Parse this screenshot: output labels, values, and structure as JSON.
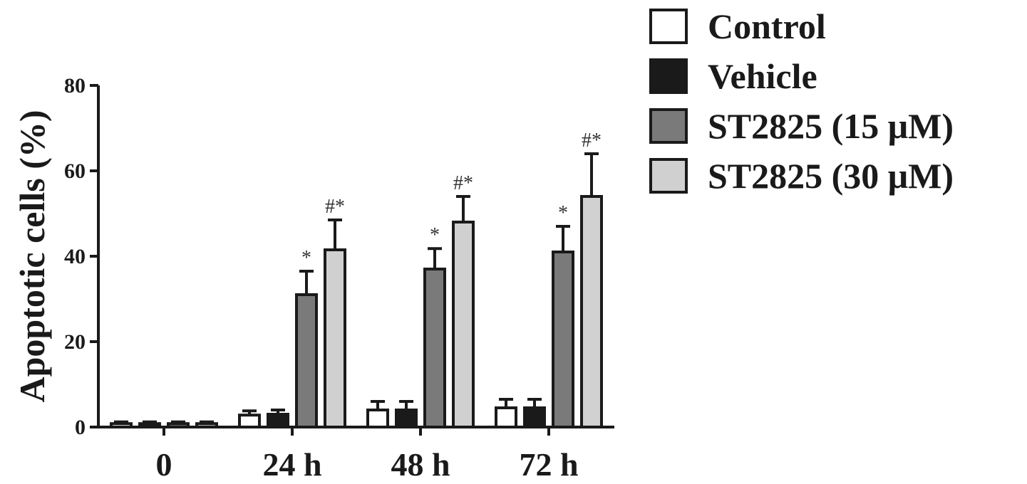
{
  "chart_data": {
    "type": "bar",
    "ylabel": "Apoptotic cells (%)",
    "xlabel": "",
    "ylim": [
      0,
      80
    ],
    "yticks": [
      0,
      20,
      40,
      60,
      80
    ],
    "categories": [
      "0",
      "24 h",
      "48 h",
      "72 h"
    ],
    "legend_position": "top-right",
    "series": [
      {
        "name": "Control",
        "color": "#ffffff",
        "values": [
          0.8,
          2.8,
          4.0,
          4.5
        ],
        "errors": [
          0.4,
          1.0,
          2.0,
          2.0
        ],
        "annotations": [
          "",
          "",
          "",
          ""
        ]
      },
      {
        "name": "Vehicle",
        "color": "#1a1a1a",
        "values": [
          0.8,
          3.0,
          4.0,
          4.5
        ],
        "errors": [
          0.4,
          1.0,
          2.0,
          2.0
        ],
        "annotations": [
          "",
          "",
          "",
          ""
        ]
      },
      {
        "name": "ST2825 (15 μM)",
        "color": "#7a7a7a",
        "values": [
          0.8,
          31.0,
          37.0,
          41.0
        ],
        "errors": [
          0.4,
          5.5,
          4.8,
          6.0
        ],
        "annotations": [
          "",
          "*",
          "*",
          "*"
        ]
      },
      {
        "name": "ST2825 (30  μM)",
        "color": "#d0d0d0",
        "values": [
          0.8,
          41.5,
          48.0,
          54.0
        ],
        "errors": [
          0.4,
          7.0,
          6.0,
          10.0
        ],
        "annotations": [
          "",
          "#*",
          "#*",
          "#*"
        ]
      }
    ]
  }
}
